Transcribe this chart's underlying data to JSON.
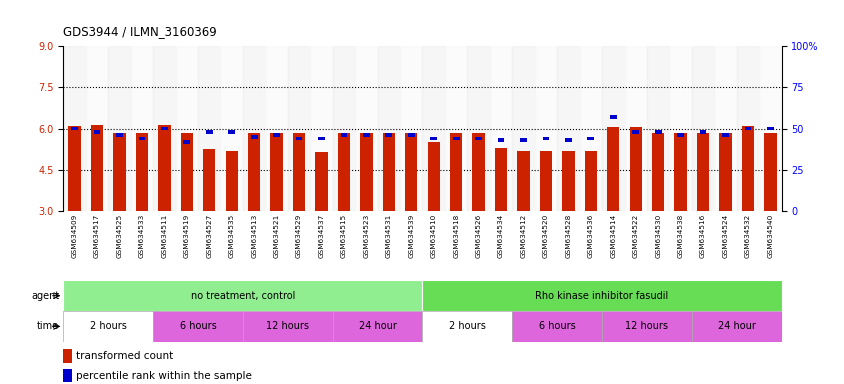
{
  "title": "GDS3944 / ILMN_3160369",
  "samples": [
    "GSM634509",
    "GSM634517",
    "GSM634525",
    "GSM634533",
    "GSM634511",
    "GSM634519",
    "GSM634527",
    "GSM634535",
    "GSM634513",
    "GSM634521",
    "GSM634529",
    "GSM634537",
    "GSM634515",
    "GSM634523",
    "GSM634531",
    "GSM634539",
    "GSM634510",
    "GSM634518",
    "GSM634526",
    "GSM634534",
    "GSM634512",
    "GSM634520",
    "GSM634528",
    "GSM634536",
    "GSM634514",
    "GSM634522",
    "GSM634530",
    "GSM634538",
    "GSM634516",
    "GSM634524",
    "GSM634532",
    "GSM634540"
  ],
  "red_values": [
    6.1,
    6.15,
    5.85,
    5.85,
    6.15,
    5.85,
    5.25,
    5.2,
    5.85,
    5.85,
    5.85,
    5.15,
    5.85,
    5.85,
    5.85,
    5.85,
    5.5,
    5.85,
    5.85,
    5.3,
    5.2,
    5.2,
    5.2,
    5.2,
    6.05,
    6.05,
    5.85,
    5.85,
    5.85,
    5.85,
    6.1,
    5.85
  ],
  "blue_values": [
    50,
    48,
    46,
    44,
    50,
    42,
    48,
    48,
    45,
    46,
    44,
    44,
    46,
    46,
    46,
    46,
    44,
    44,
    44,
    43,
    43,
    44,
    43,
    44,
    57,
    48,
    48,
    46,
    48,
    46,
    50,
    50
  ],
  "ylim": [
    3,
    9
  ],
  "yticks_left": [
    3,
    4.5,
    6,
    7.5,
    9
  ],
  "yticks_right": [
    0,
    25,
    50,
    75,
    100
  ],
  "yticklabels_right": [
    "0",
    "25",
    "50",
    "75",
    "100%"
  ],
  "grid_lines": [
    4.5,
    6.0,
    7.5
  ],
  "agent_groups": [
    {
      "label": "no treatment, control",
      "start": 0,
      "end": 16,
      "color": "#90EE90"
    },
    {
      "label": "Rho kinase inhibitor fasudil",
      "start": 16,
      "end": 32,
      "color": "#66DD55"
    }
  ],
  "time_groups": [
    {
      "label": "2 hours",
      "start": 0,
      "end": 4,
      "color": "#ffffff"
    },
    {
      "label": "6 hours",
      "start": 4,
      "end": 8,
      "color": "#DD66DD"
    },
    {
      "label": "12 hours",
      "start": 8,
      "end": 12,
      "color": "#DD66DD"
    },
    {
      "label": "24 hour",
      "start": 12,
      "end": 16,
      "color": "#DD66DD"
    },
    {
      "label": "2 hours",
      "start": 16,
      "end": 20,
      "color": "#ffffff"
    },
    {
      "label": "6 hours",
      "start": 20,
      "end": 24,
      "color": "#DD66DD"
    },
    {
      "label": "12 hours",
      "start": 24,
      "end": 28,
      "color": "#DD66DD"
    },
    {
      "label": "24 hour",
      "start": 28,
      "end": 32,
      "color": "#DD66DD"
    }
  ],
  "bar_color": "#CC2200",
  "blue_color": "#0000CC",
  "bar_width": 0.55,
  "ybase": 3.0,
  "fig_width": 8.45,
  "fig_height": 3.84
}
